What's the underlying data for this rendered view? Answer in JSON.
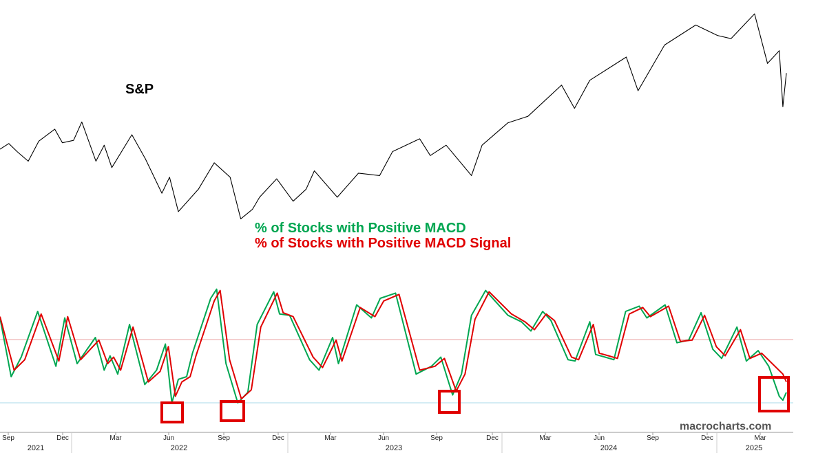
{
  "chart_data": [
    {
      "type": "line",
      "title": "S&P",
      "grid": false,
      "series": [
        {
          "name": "S&P",
          "color": "#000000",
          "x": [
            "2021-08-17",
            "2021-09-01",
            "2021-09-15",
            "2021-10-04",
            "2021-10-22",
            "2021-11-18",
            "2021-12-01",
            "2021-12-20",
            "2022-01-03",
            "2022-01-27",
            "2022-02-10",
            "2022-02-23",
            "2022-03-29",
            "2022-04-21",
            "2022-05-19",
            "2022-06-01",
            "2022-06-16",
            "2022-07-20",
            "2022-08-16",
            "2022-09-12",
            "2022-09-30",
            "2022-10-20",
            "2022-11-01",
            "2022-11-30",
            "2022-12-28",
            "2023-01-19",
            "2023-02-02",
            "2023-03-13",
            "2023-04-18",
            "2023-05-24",
            "2023-06-15",
            "2023-07-31",
            "2023-08-18",
            "2023-09-14",
            "2023-10-27",
            "2023-11-14",
            "2023-12-28",
            "2024-01-31",
            "2024-03-28",
            "2024-04-19",
            "2024-05-15",
            "2024-07-16",
            "2024-08-05",
            "2024-09-19",
            "2024-11-11",
            "2024-12-18",
            "2025-01-10",
            "2025-02-19",
            "2025-03-13",
            "2025-04-02",
            "2025-04-08",
            "2025-04-14"
          ],
          "y": [
            4450,
            4520,
            4420,
            4300,
            4550,
            4700,
            4530,
            4560,
            4790,
            4300,
            4500,
            4220,
            4630,
            4330,
            3900,
            4100,
            3670,
            3950,
            4280,
            4100,
            3580,
            3700,
            3850,
            4080,
            3800,
            3950,
            4180,
            3850,
            4150,
            4120,
            4420,
            4580,
            4370,
            4500,
            4120,
            4500,
            4780,
            4860,
            5250,
            4960,
            5310,
            5600,
            5180,
            5750,
            6000,
            5870,
            5830,
            6140,
            5520,
            5680,
            4980,
            5400
          ]
        }
      ]
    },
    {
      "type": "line",
      "grid": false,
      "x_ticks": [
        "Sep",
        "Dec",
        "Mar",
        "Jun",
        "Sep",
        "Dec",
        "Mar",
        "Jun",
        "Sep",
        "Dec",
        "Mar",
        "Jun",
        "Sep",
        "Dec",
        "Mar"
      ],
      "year_labels": [
        "2021",
        "2022",
        "2023",
        "2024",
        "2025"
      ],
      "reference_lines": [
        {
          "color": "#e8a0a0"
        },
        {
          "color": "#a8d8ea"
        }
      ],
      "highlights": [
        {
          "x_from": "2022-06-01",
          "x_to": "2022-06-30",
          "color": "#e00000"
        },
        {
          "x_from": "2022-09-20",
          "x_to": "2022-10-20",
          "color": "#e00000"
        },
        {
          "x_from": "2023-09-25",
          "x_to": "2023-10-20",
          "color": "#e00000"
        },
        {
          "x_from": "2025-03-25",
          "x_to": "2025-04-30",
          "color": "#e00000"
        }
      ],
      "series": [
        {
          "name": "% of Stocks with Positive MACD",
          "color": "#00a651",
          "x": [
            "2021-08-17",
            "2021-09-05",
            "2021-09-22",
            "2021-10-20",
            "2021-11-20",
            "2021-12-05",
            "2021-12-26",
            "2022-01-26",
            "2022-02-10",
            "2022-02-20",
            "2022-03-05",
            "2022-03-25",
            "2022-04-20",
            "2022-05-10",
            "2022-05-25",
            "2022-06-05",
            "2022-06-16",
            "2022-06-30",
            "2022-07-10",
            "2022-08-10",
            "2022-08-20",
            "2022-09-05",
            "2022-09-25",
            "2022-10-12",
            "2022-10-28",
            "2022-11-25",
            "2022-12-05",
            "2022-12-22",
            "2023-01-25",
            "2023-02-10",
            "2023-03-05",
            "2023-03-15",
            "2023-04-15",
            "2023-05-10",
            "2023-05-25",
            "2023-06-20",
            "2023-07-25",
            "2023-08-20",
            "2023-09-05",
            "2023-09-25",
            "2023-10-10",
            "2023-10-27",
            "2023-11-20",
            "2023-12-28",
            "2024-01-20",
            "2024-02-05",
            "2024-02-25",
            "2024-03-10",
            "2024-04-08",
            "2024-04-20",
            "2024-05-15",
            "2024-05-25",
            "2024-06-10",
            "2024-06-25",
            "2024-07-15",
            "2024-08-07",
            "2024-08-20",
            "2024-09-20",
            "2024-10-10",
            "2024-10-30",
            "2024-11-20",
            "2024-12-10",
            "2024-12-25",
            "2025-01-20",
            "2025-02-05",
            "2025-02-25",
            "2025-03-15",
            "2025-04-02",
            "2025-04-08",
            "2025-04-14"
          ],
          "y": [
            0.65,
            0.2,
            0.35,
            0.7,
            0.28,
            0.65,
            0.3,
            0.5,
            0.25,
            0.36,
            0.22,
            0.6,
            0.14,
            0.25,
            0.45,
            0.0,
            0.18,
            0.2,
            0.38,
            0.8,
            0.87,
            0.3,
            0.0,
            0.08,
            0.6,
            0.85,
            0.68,
            0.67,
            0.33,
            0.25,
            0.5,
            0.3,
            0.75,
            0.65,
            0.8,
            0.84,
            0.22,
            0.28,
            0.35,
            0.06,
            0.22,
            0.67,
            0.86,
            0.67,
            0.62,
            0.55,
            0.7,
            0.63,
            0.33,
            0.32,
            0.62,
            0.37,
            0.35,
            0.33,
            0.7,
            0.74,
            0.65,
            0.75,
            0.46,
            0.48,
            0.69,
            0.41,
            0.34,
            0.58,
            0.32,
            0.4,
            0.28,
            0.05,
            0.02,
            0.08
          ]
        },
        {
          "name": "% of Stocks with Positive MACD Signal",
          "color": "#e00000",
          "x": [
            "2021-08-17",
            "2021-09-10",
            "2021-09-28",
            "2021-10-26",
            "2021-11-25",
            "2021-12-10",
            "2022-01-01",
            "2022-02-01",
            "2022-02-16",
            "2022-02-26",
            "2022-03-10",
            "2022-03-31",
            "2022-04-26",
            "2022-05-16",
            "2022-05-30",
            "2022-06-11",
            "2022-06-22",
            "2022-07-06",
            "2022-07-16",
            "2022-08-16",
            "2022-08-26",
            "2022-09-11",
            "2022-10-01",
            "2022-10-18",
            "2022-11-03",
            "2022-12-01",
            "2022-12-11",
            "2022-12-28",
            "2023-01-31",
            "2023-02-16",
            "2023-03-11",
            "2023-03-21",
            "2023-04-21",
            "2023-05-16",
            "2023-05-31",
            "2023-06-26",
            "2023-07-31",
            "2023-08-26",
            "2023-09-11",
            "2023-10-01",
            "2023-10-16",
            "2023-11-02",
            "2023-11-26",
            "2024-01-03",
            "2024-01-26",
            "2024-02-11",
            "2024-03-02",
            "2024-03-16",
            "2024-04-14",
            "2024-04-26",
            "2024-05-21",
            "2024-05-31",
            "2024-06-16",
            "2024-07-01",
            "2024-07-21",
            "2024-08-13",
            "2024-08-26",
            "2024-09-26",
            "2024-10-16",
            "2024-11-05",
            "2024-11-26",
            "2024-12-16",
            "2024-12-31",
            "2025-01-26",
            "2025-02-11",
            "2025-03-03",
            "2025-03-21",
            "2025-04-08",
            "2025-04-14"
          ],
          "y": [
            0.66,
            0.25,
            0.33,
            0.68,
            0.32,
            0.66,
            0.33,
            0.48,
            0.3,
            0.35,
            0.25,
            0.58,
            0.16,
            0.24,
            0.43,
            0.05,
            0.16,
            0.2,
            0.36,
            0.78,
            0.86,
            0.33,
            0.03,
            0.1,
            0.58,
            0.84,
            0.69,
            0.66,
            0.35,
            0.27,
            0.48,
            0.32,
            0.73,
            0.66,
            0.78,
            0.83,
            0.25,
            0.28,
            0.34,
            0.09,
            0.22,
            0.64,
            0.85,
            0.68,
            0.62,
            0.56,
            0.68,
            0.63,
            0.35,
            0.33,
            0.6,
            0.38,
            0.36,
            0.34,
            0.68,
            0.73,
            0.66,
            0.74,
            0.47,
            0.48,
            0.67,
            0.43,
            0.36,
            0.56,
            0.34,
            0.38,
            0.3,
            0.22,
            0.16
          ]
        }
      ]
    }
  ],
  "watermark": "macrocharts.com"
}
